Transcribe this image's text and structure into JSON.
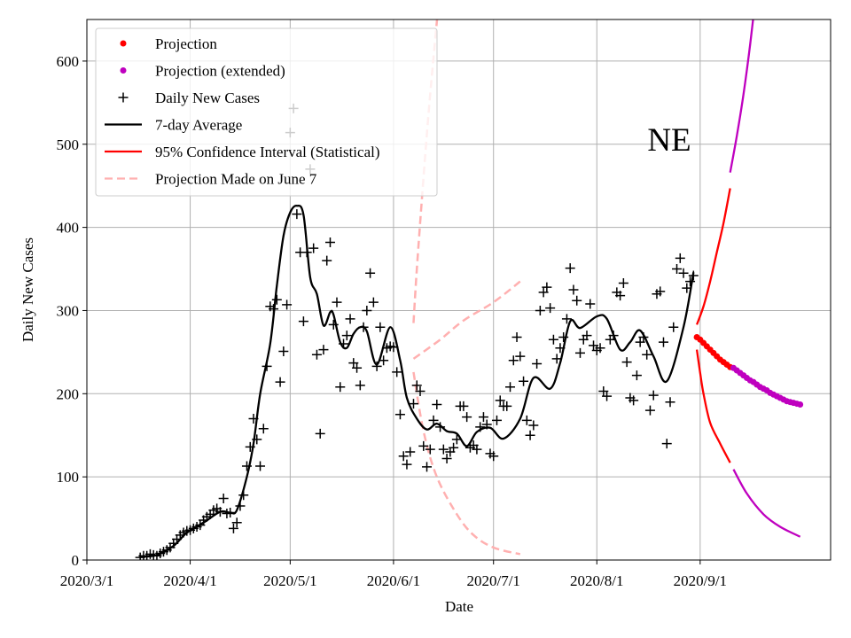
{
  "chart_data": {
    "type": "line",
    "annotation": "NE",
    "xlabel": "Date",
    "ylabel": "Daily New Cases",
    "x_tick_labels": [
      "2020/3/1",
      "2020/4/1",
      "2020/5/1",
      "2020/6/1",
      "2020/7/1",
      "2020/8/1",
      "2020/9/1"
    ],
    "x_tick_dates": [
      "2020-03-01",
      "2020-04-01",
      "2020-05-01",
      "2020-06-01",
      "2020-07-01",
      "2020-08-01",
      "2020-09-01"
    ],
    "y_ticks": [
      0,
      100,
      200,
      300,
      400,
      500,
      600
    ],
    "xlim": [
      "2020-03-01",
      "2020-10-11"
    ],
    "ylim": [
      0,
      650
    ],
    "grid": true,
    "legend_position": "top-left",
    "legend": [
      {
        "label": "Projection",
        "color": "#ff0000",
        "style": "dot"
      },
      {
        "label": "Projection (extended)",
        "color": "#bf00bf",
        "style": "dot"
      },
      {
        "label": "Daily New Cases",
        "color": "#000000",
        "style": "plus"
      },
      {
        "label": "7-day Average",
        "color": "#000000",
        "style": "line"
      },
      {
        "label": "95% Confidence Interval (Statistical)",
        "color": "#ff0000",
        "style": "line"
      },
      {
        "label": "Projection Made on June 7",
        "color": "#ffb0b0",
        "style": "dashed"
      }
    ],
    "daily_new_cases": [
      {
        "month": "2020-03",
        "from_day": 17,
        "values": [
          3,
          5,
          5,
          7,
          6,
          5,
          8,
          10,
          12,
          15,
          20,
          25,
          30,
          33,
          35
        ]
      },
      {
        "month": "2020-04",
        "from_day": 1,
        "values": [
          36,
          38,
          40,
          42,
          48,
          52,
          55,
          60,
          62,
          58,
          74,
          56,
          57,
          38,
          45,
          65,
          78,
          113,
          136,
          170,
          145,
          113,
          158,
          233,
          305,
          302,
          313,
          214,
          251,
          307
        ]
      },
      {
        "month": "2020-05",
        "from_day": 1,
        "values": [
          514,
          543,
          416,
          370,
          287,
          370,
          470,
          375,
          247,
          152,
          253,
          360,
          382,
          283,
          310,
          208,
          260,
          270,
          290,
          237,
          231,
          210,
          280,
          300,
          345,
          310,
          233,
          280,
          240,
          255,
          257
        ]
      },
      {
        "month": "2020-06",
        "from_day": 1,
        "values": [
          256,
          226,
          175,
          125,
          115,
          130,
          188,
          210,
          203,
          137,
          112,
          133,
          168,
          187,
          160,
          133,
          122,
          130,
          135,
          145,
          185,
          185,
          172,
          135,
          138,
          133,
          160,
          172,
          163,
          128
        ]
      },
      {
        "month": "2020-07",
        "from_day": 1,
        "values": [
          125,
          168,
          192,
          185,
          185,
          208,
          240,
          268,
          245,
          215,
          168,
          150,
          162,
          236,
          300,
          322,
          328,
          303,
          265,
          242,
          255,
          268,
          290,
          351,
          325,
          312,
          249,
          265,
          270,
          308,
          258
        ]
      },
      {
        "month": "2020-08",
        "from_day": 1,
        "values": [
          252,
          255,
          203,
          197,
          265,
          270,
          322,
          318,
          333,
          238,
          195,
          192,
          222,
          262,
          268,
          247,
          180,
          198,
          320,
          323,
          262,
          140,
          190,
          280,
          350,
          363,
          345,
          327,
          335,
          342
        ]
      }
    ],
    "seven_day_average": [
      [
        "2020-03-17",
        4
      ],
      [
        "2020-03-22",
        6
      ],
      [
        "2020-03-27",
        17
      ],
      [
        "2020-03-31",
        33
      ],
      [
        "2020-04-05",
        45
      ],
      [
        "2020-04-10",
        58
      ],
      [
        "2020-04-13",
        57
      ],
      [
        "2020-04-15",
        60
      ],
      [
        "2020-04-18",
        100
      ],
      [
        "2020-04-20",
        140
      ],
      [
        "2020-04-22",
        200
      ],
      [
        "2020-04-25",
        260
      ],
      [
        "2020-04-27",
        330
      ],
      [
        "2020-04-29",
        390
      ],
      [
        "2020-05-01",
        418
      ],
      [
        "2020-05-03",
        426
      ],
      [
        "2020-05-05",
        415
      ],
      [
        "2020-05-07",
        340
      ],
      [
        "2020-05-09",
        320
      ],
      [
        "2020-05-11",
        282
      ],
      [
        "2020-05-13",
        298
      ],
      [
        "2020-05-14",
        295
      ],
      [
        "2020-05-16",
        262
      ],
      [
        "2020-05-18",
        255
      ],
      [
        "2020-05-20",
        272
      ],
      [
        "2020-05-22",
        280
      ],
      [
        "2020-05-24",
        275
      ],
      [
        "2020-05-27",
        235
      ],
      [
        "2020-05-31",
        280
      ],
      [
        "2020-06-03",
        240
      ],
      [
        "2020-06-05",
        195
      ],
      [
        "2020-06-08",
        170
      ],
      [
        "2020-06-11",
        157
      ],
      [
        "2020-06-14",
        164
      ],
      [
        "2020-06-17",
        155
      ],
      [
        "2020-06-20",
        152
      ],
      [
        "2020-06-23",
        137
      ],
      [
        "2020-06-26",
        154
      ],
      [
        "2020-06-30",
        159
      ],
      [
        "2020-07-04",
        146
      ],
      [
        "2020-07-09",
        170
      ],
      [
        "2020-07-13",
        219
      ],
      [
        "2020-07-18",
        206
      ],
      [
        "2020-07-21",
        237
      ],
      [
        "2020-07-24",
        287
      ],
      [
        "2020-07-27",
        279
      ],
      [
        "2020-08-01",
        293
      ],
      [
        "2020-08-04",
        290
      ],
      [
        "2020-08-08",
        253
      ],
      [
        "2020-08-11",
        262
      ],
      [
        "2020-08-14",
        276
      ],
      [
        "2020-08-18",
        245
      ],
      [
        "2020-08-22",
        215
      ],
      [
        "2020-08-27",
        280
      ],
      [
        "2020-08-30",
        346
      ]
    ],
    "projection": [
      [
        "2020-08-31",
        268
      ],
      [
        "2020-09-01",
        265
      ],
      [
        "2020-09-02",
        261
      ],
      [
        "2020-09-03",
        257
      ],
      [
        "2020-09-04",
        253
      ],
      [
        "2020-09-05",
        249
      ],
      [
        "2020-09-06",
        245
      ],
      [
        "2020-09-07",
        241
      ],
      [
        "2020-09-08",
        238
      ],
      [
        "2020-09-09",
        235
      ],
      [
        "2020-09-10",
        232
      ]
    ],
    "projection_extended": [
      [
        "2020-09-11",
        231
      ],
      [
        "2020-09-12",
        228
      ],
      [
        "2020-09-13",
        225
      ],
      [
        "2020-09-14",
        222
      ],
      [
        "2020-09-15",
        219
      ],
      [
        "2020-09-16",
        216
      ],
      [
        "2020-09-17",
        214
      ],
      [
        "2020-09-18",
        211
      ],
      [
        "2020-09-19",
        208
      ],
      [
        "2020-09-20",
        206
      ],
      [
        "2020-09-21",
        204
      ],
      [
        "2020-09-22",
        201
      ],
      [
        "2020-09-23",
        199
      ],
      [
        "2020-09-24",
        197
      ],
      [
        "2020-09-25",
        195
      ],
      [
        "2020-09-26",
        193
      ],
      [
        "2020-09-27",
        191
      ],
      [
        "2020-09-28",
        190
      ],
      [
        "2020-09-29",
        189
      ],
      [
        "2020-09-30",
        188
      ],
      [
        "2020-10-01",
        187
      ]
    ],
    "ci_upper": [
      [
        "2020-08-31",
        283
      ],
      [
        "2020-09-02",
        305
      ],
      [
        "2020-09-04",
        335
      ],
      [
        "2020-09-06",
        370
      ],
      [
        "2020-09-08",
        405
      ],
      [
        "2020-09-10",
        447
      ]
    ],
    "ci_lower": [
      [
        "2020-08-31",
        253
      ],
      [
        "2020-09-01",
        225
      ],
      [
        "2020-09-02",
        200
      ],
      [
        "2020-09-04",
        165
      ],
      [
        "2020-09-07",
        140
      ],
      [
        "2020-09-10",
        117
      ]
    ],
    "ci_upper_extended": [
      [
        "2020-09-10",
        466
      ],
      [
        "2020-09-12",
        510
      ],
      [
        "2020-09-14",
        560
      ],
      [
        "2020-09-16",
        620
      ],
      [
        "2020-09-18",
        690
      ]
    ],
    "ci_lower_extended": [
      [
        "2020-09-11",
        109
      ],
      [
        "2020-09-15",
        80
      ],
      [
        "2020-09-20",
        55
      ],
      [
        "2020-09-25",
        40
      ],
      [
        "2020-10-01",
        28
      ]
    ],
    "june7_projection": [
      [
        "2020-06-07",
        242
      ],
      [
        "2020-06-15",
        265
      ],
      [
        "2020-06-22",
        288
      ],
      [
        "2020-07-01",
        310
      ],
      [
        "2020-07-09",
        335
      ]
    ],
    "june7_upper": [
      [
        "2020-06-07",
        285
      ],
      [
        "2020-06-08",
        350
      ],
      [
        "2020-06-10",
        460
      ],
      [
        "2020-06-12",
        560
      ],
      [
        "2020-06-15",
        690
      ]
    ],
    "june7_lower": [
      [
        "2020-06-07",
        226
      ],
      [
        "2020-06-10",
        155
      ],
      [
        "2020-06-14",
        100
      ],
      [
        "2020-06-20",
        55
      ],
      [
        "2020-06-25",
        30
      ],
      [
        "2020-07-01",
        15
      ],
      [
        "2020-07-09",
        7
      ]
    ]
  }
}
